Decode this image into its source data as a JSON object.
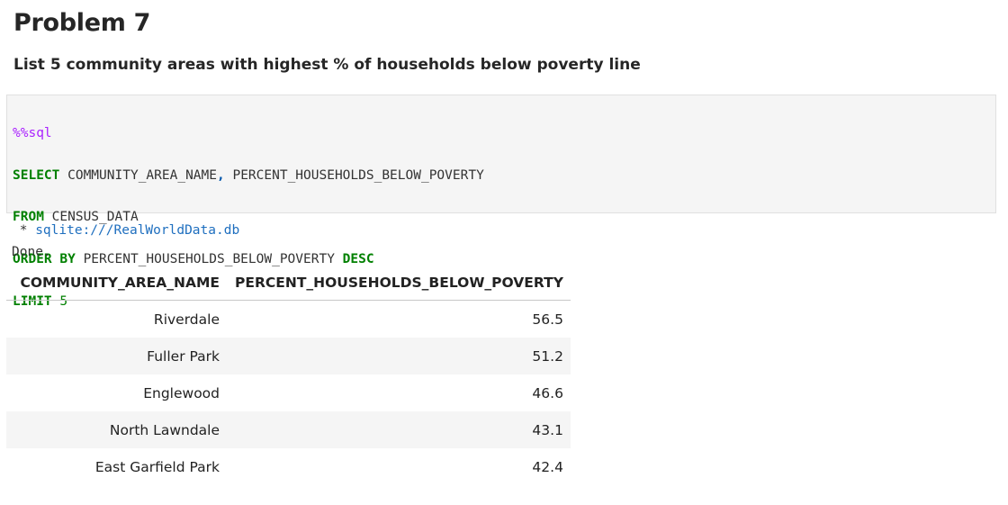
{
  "cell": {
    "heading": "Problem 7",
    "subheading": "List 5 community areas with highest % of households below poverty line"
  },
  "code": {
    "magic": "%%sql",
    "line1_kw": "SELECT",
    "line1_rest_a": " COMMUNITY_AREA_NAME",
    "line1_comma": ",",
    "line1_rest_b": " PERCENT_HOUSEHOLDS_BELOW_POVERTY",
    "line2_kw": "FROM",
    "line2_rest": " CENSUS_DATA",
    "line3_kw": "ORDER BY",
    "line3_rest": " PERCENT_HOUSEHOLDS_BELOW_POVERTY ",
    "line3_kw2": "DESC",
    "line4_kw": "LIMIT",
    "line4_num": " 5"
  },
  "output": {
    "bullet": " * ",
    "connection": "sqlite:///RealWorldData.db",
    "status": "Done."
  },
  "table": {
    "columns": [
      "COMMUNITY_AREA_NAME",
      "PERCENT_HOUSEHOLDS_BELOW_POVERTY"
    ],
    "rows": [
      [
        "Riverdale",
        "56.5"
      ],
      [
        "Fuller Park",
        "51.2"
      ],
      [
        "Englewood",
        "46.6"
      ],
      [
        "North Lawndale",
        "43.1"
      ],
      [
        "East Garfield Park",
        "42.4"
      ]
    ]
  }
}
